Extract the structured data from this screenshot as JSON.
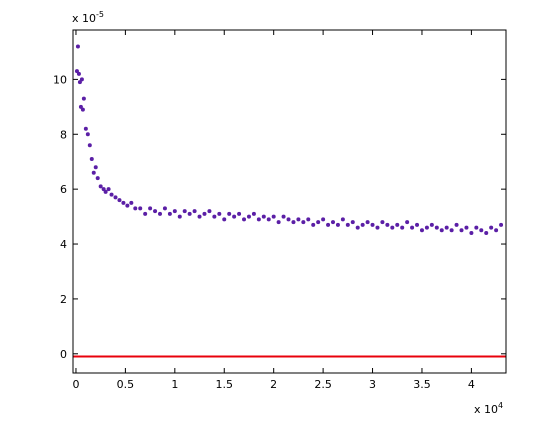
{
  "chart_data": {
    "type": "scatter",
    "x": [
      0.01,
      0.02,
      0.03,
      0.04,
      0.05,
      0.06,
      0.07,
      0.08,
      0.1,
      0.12,
      0.14,
      0.16,
      0.18,
      0.2,
      0.22,
      0.25,
      0.28,
      0.3,
      0.33,
      0.36,
      0.4,
      0.44,
      0.48,
      0.52,
      0.56,
      0.6,
      0.65,
      0.7,
      0.75,
      0.8,
      0.85,
      0.9,
      0.95,
      1.0,
      1.05,
      1.1,
      1.15,
      1.2,
      1.25,
      1.3,
      1.35,
      1.4,
      1.45,
      1.5,
      1.55,
      1.6,
      1.65,
      1.7,
      1.75,
      1.8,
      1.85,
      1.9,
      1.95,
      2.0,
      2.05,
      2.1,
      2.15,
      2.2,
      2.25,
      2.3,
      2.35,
      2.4,
      2.45,
      2.5,
      2.55,
      2.6,
      2.65,
      2.7,
      2.75,
      2.8,
      2.85,
      2.9,
      2.95,
      3.0,
      3.05,
      3.1,
      3.15,
      3.2,
      3.25,
      3.3,
      3.35,
      3.4,
      3.45,
      3.5,
      3.55,
      3.6,
      3.65,
      3.7,
      3.75,
      3.8,
      3.85,
      3.9,
      3.95,
      4.0,
      4.05,
      4.1,
      4.15,
      4.2,
      4.25,
      4.3
    ],
    "values": [
      10.3,
      11.2,
      10.2,
      9.9,
      9.0,
      10.0,
      8.9,
      9.3,
      8.2,
      8.0,
      7.6,
      7.1,
      6.6,
      6.8,
      6.4,
      6.1,
      6.0,
      5.9,
      6.0,
      5.8,
      5.7,
      5.6,
      5.5,
      5.4,
      5.5,
      5.3,
      5.3,
      5.1,
      5.3,
      5.2,
      5.1,
      5.3,
      5.1,
      5.2,
      5.0,
      5.2,
      5.1,
      5.2,
      5.0,
      5.1,
      5.2,
      5.0,
      5.1,
      4.9,
      5.1,
      5.0,
      5.1,
      4.9,
      5.0,
      5.1,
      4.9,
      5.0,
      4.9,
      5.0,
      4.8,
      5.0,
      4.9,
      4.8,
      4.9,
      4.8,
      4.9,
      4.7,
      4.8,
      4.9,
      4.7,
      4.8,
      4.7,
      4.9,
      4.7,
      4.8,
      4.6,
      4.7,
      4.8,
      4.7,
      4.6,
      4.8,
      4.7,
      4.6,
      4.7,
      4.6,
      4.8,
      4.6,
      4.7,
      4.5,
      4.6,
      4.7,
      4.6,
      4.5,
      4.6,
      4.5,
      4.7,
      4.5,
      4.6,
      4.4,
      4.6,
      4.5,
      4.4,
      4.6,
      4.5,
      4.7
    ],
    "color": "#5b1fa6",
    "hline": {
      "value": -0.1,
      "color": "#e8000b"
    },
    "xlim": [
      -0.03,
      4.35
    ],
    "ylim": [
      -0.7,
      11.8
    ],
    "xticks": [
      0,
      0.5,
      1,
      1.5,
      2,
      2.5,
      3,
      3.5,
      4
    ],
    "yticks": [
      0,
      2,
      4,
      6,
      8,
      10
    ],
    "x_multiplier": {
      "base": "x 10",
      "exponent": "4"
    },
    "y_multiplier": {
      "base": "x 10",
      "exponent": "-5"
    }
  }
}
